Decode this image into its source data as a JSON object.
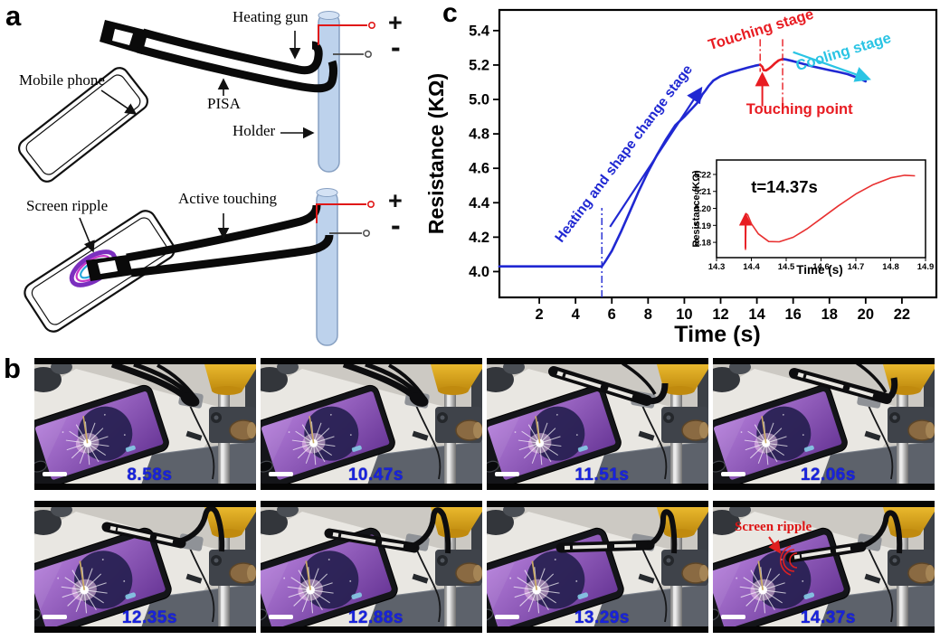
{
  "figure": {
    "panel_labels": {
      "a": "a",
      "b": "b",
      "c": "c"
    }
  },
  "colors": {
    "curve_blue": "#2028d2",
    "stage_red": "#e81c22",
    "cooling_cyan": "#2ac4e4",
    "timestamp_blue": "#1822dd",
    "holder_fill": "#bdd2ec",
    "ripple_purple": "#7b2fbe",
    "photo_gold": "#e5a81c"
  },
  "panel_a": {
    "top": {
      "heating_gun": "Heating gun",
      "mobile_phone": "Mobile phone",
      "pisa": "PISA",
      "holder": "Holder",
      "plus": "+",
      "minus": "-"
    },
    "bottom": {
      "screen_ripple": "Screen ripple",
      "active_touching": "Active touching",
      "plus": "+",
      "minus": "-"
    }
  },
  "panel_b": {
    "frames": [
      {
        "time": "8.58s"
      },
      {
        "time": "10.47s"
      },
      {
        "time": "11.51s"
      },
      {
        "time": "12.06s"
      },
      {
        "time": "12.35s"
      },
      {
        "time": "12.88s"
      },
      {
        "time": "13.29s"
      },
      {
        "time": "14.37s",
        "annotation": "Screen ripple"
      }
    ]
  },
  "chart_data": [
    {
      "type": "line",
      "title": "",
      "xlabel": "Time (s)",
      "ylabel": "Resistance (KΩ)",
      "xlim": [
        -0.2,
        23.9
      ],
      "ylim": [
        3.85,
        5.52
      ],
      "xticks": [
        "2",
        "4",
        "6",
        "8",
        "10",
        "12",
        "14",
        "16",
        "18",
        "20",
        "22"
      ],
      "yticks": [
        "4.0",
        "4.2",
        "4.4",
        "4.6",
        "4.8",
        "5.0",
        "5.2",
        "5.4"
      ],
      "grid": false,
      "legend": false,
      "series": [
        {
          "name": "heating-and-shape-change",
          "color": "#2028d2",
          "points": [
            [
              -0.2,
              4.03
            ],
            [
              5.45,
              4.03
            ],
            [
              5.65,
              4.06
            ],
            [
              6,
              4.12
            ],
            [
              6.5,
              4.23
            ],
            [
              7,
              4.35
            ],
            [
              7.5,
              4.47
            ],
            [
              8,
              4.58
            ],
            [
              8.5,
              4.68
            ],
            [
              9,
              4.77
            ],
            [
              9.5,
              4.85
            ],
            [
              10,
              4.9
            ],
            [
              10.45,
              4.95
            ],
            [
              10.8,
              4.99
            ],
            [
              11.0,
              5.03
            ],
            [
              11.15,
              5.05
            ],
            [
              11.35,
              5.08
            ],
            [
              11.6,
              5.11
            ],
            [
              12,
              5.135
            ],
            [
              12.5,
              5.155
            ],
            [
              13,
              5.17
            ],
            [
              13.5,
              5.185
            ],
            [
              13.9,
              5.196
            ],
            [
              14.18,
              5.202
            ]
          ]
        },
        {
          "name": "touching-dip",
          "color": "#e81c22",
          "points": [
            [
              14.18,
              5.202
            ],
            [
              14.3,
              5.19
            ],
            [
              14.37,
              5.17
            ],
            [
              14.5,
              5.168
            ],
            [
              14.65,
              5.178
            ],
            [
              14.8,
              5.19
            ],
            [
              15.0,
              5.21
            ],
            [
              15.2,
              5.227
            ],
            [
              15.42,
              5.235
            ]
          ]
        },
        {
          "name": "cooling",
          "color": "#2028d2",
          "points": [
            [
              15.42,
              5.235
            ],
            [
              15.6,
              5.232
            ],
            [
              16,
              5.222
            ],
            [
              16.5,
              5.208
            ],
            [
              17,
              5.194
            ],
            [
              17.5,
              5.182
            ],
            [
              18,
              5.17
            ],
            [
              18.5,
              5.16
            ],
            [
              19,
              5.147
            ],
            [
              19.5,
              5.128
            ],
            [
              20,
              5.105
            ]
          ]
        }
      ],
      "annotations": [
        {
          "text": "Heating and shape change stage",
          "color": "#2028d2",
          "x": 6.85,
          "y": 4.67,
          "rotation": -53,
          "size": 15.5
        },
        {
          "text": "Touching stage",
          "color": "#e81c22",
          "x": 14.3,
          "y": 5.38,
          "rotation": -17,
          "size": 16.5
        },
        {
          "text": "Cooling stage",
          "color": "#2ac4e4",
          "x": 18.85,
          "y": 5.25,
          "rotation": -17,
          "size": 16.5
        },
        {
          "text": "Touching point",
          "color": "#e81c22",
          "x": 16.35,
          "y": 4.915,
          "rotation": 0,
          "size": 16.5
        }
      ],
      "guides": [
        {
          "type": "vline",
          "x": 5.45,
          "y1": 3.85,
          "y2": 4.37,
          "color": "#2028d2"
        },
        {
          "type": "vline",
          "x": 14.18,
          "y1": 5.35,
          "y2": 5.16,
          "color": "#e81c22"
        },
        {
          "type": "vline",
          "x": 15.42,
          "y1": 5.35,
          "y2": 4.97,
          "color": "#e81c22"
        },
        {
          "type": "arrow",
          "x1": 5.9,
          "y1": 4.26,
          "x2": 10.9,
          "y2": 5.06,
          "color": "#2028d2",
          "w": 2.2
        },
        {
          "type": "arrow",
          "x1": 14.3,
          "y1": 4.96,
          "x2": 14.3,
          "y2": 5.145,
          "color": "#e81c22",
          "w": 2
        },
        {
          "type": "arrow",
          "x1": 16.0,
          "y1": 5.275,
          "x2": 20.15,
          "y2": 5.12,
          "color": "#2ac4e4",
          "w": 2.2
        }
      ]
    },
    {
      "type": "line",
      "label": "t=14.37s",
      "xlabel": "Time (s)",
      "ylabel": "Resistance (KΩ)",
      "xlim": [
        14.3,
        14.9
      ],
      "ylim": [
        5.171,
        5.2285
      ],
      "xticks": [
        "14.3",
        "14.4",
        "14.5",
        "14.6",
        "14.7",
        "14.8",
        "14.9"
      ],
      "yticks": [
        "5.18",
        "5.19",
        "5.20",
        "5.21",
        "5.22"
      ],
      "series": [
        {
          "name": "touch-detail",
          "color": "#e83030",
          "points": [
            [
              14.383,
              5.1755
            ],
            [
              14.385,
              5.197
            ],
            [
              14.39,
              5.196
            ],
            [
              14.4,
              5.191
            ],
            [
              14.42,
              5.185
            ],
            [
              14.45,
              5.1805
            ],
            [
              14.48,
              5.1803
            ],
            [
              14.52,
              5.183
            ],
            [
              14.56,
              5.188
            ],
            [
              14.6,
              5.194
            ],
            [
              14.65,
              5.2015
            ],
            [
              14.7,
              5.2085
            ],
            [
              14.75,
              5.214
            ],
            [
              14.8,
              5.218
            ],
            [
              14.84,
              5.2195
            ],
            [
              14.87,
              5.2192
            ]
          ]
        }
      ],
      "guides": [
        {
          "type": "arrow",
          "x1": 14.383,
          "y1": 5.1765,
          "x2": 14.383,
          "y2": 5.196,
          "color": "#e81c22",
          "w": 1.8
        }
      ]
    }
  ]
}
